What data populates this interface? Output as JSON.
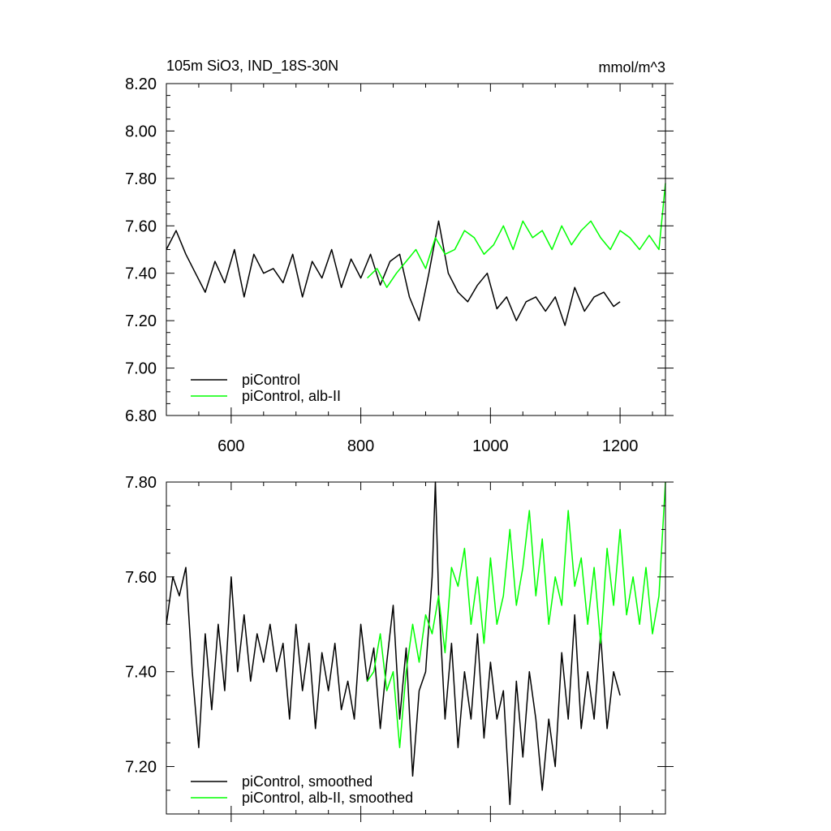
{
  "chart_data": [
    {
      "type": "line",
      "title": "105m SiO3, IND_18S-30N",
      "units_label": "mmol/m^3",
      "xlim": [
        500,
        1270
      ],
      "ylim": [
        6.8,
        8.2
      ],
      "x_ticks": [
        600,
        800,
        1000,
        1200
      ],
      "x_tick_labels": [
        "600",
        "800",
        "1000",
        "1200"
      ],
      "y_ticks": [
        6.8,
        7.0,
        7.2,
        7.4,
        7.6,
        7.8,
        8.0,
        8.2
      ],
      "y_tick_labels": [
        "6.80",
        "7.00",
        "7.20",
        "7.40",
        "7.60",
        "7.80",
        "8.00",
        "8.20"
      ],
      "grid": false,
      "legend_position": "bottom-left",
      "series": [
        {
          "name": "piControl",
          "color": "#000000",
          "x": [
            500,
            515,
            530,
            545,
            560,
            575,
            590,
            605,
            620,
            635,
            650,
            665,
            680,
            695,
            710,
            725,
            740,
            755,
            770,
            785,
            800,
            815,
            830,
            845,
            860,
            875,
            890,
            905,
            920,
            935,
            950,
            965,
            980,
            995,
            1010,
            1025,
            1040,
            1055,
            1070,
            1085,
            1100,
            1115,
            1130,
            1145,
            1160,
            1175,
            1190,
            1200
          ],
          "y": [
            7.5,
            7.58,
            7.48,
            7.4,
            7.32,
            7.45,
            7.36,
            7.5,
            7.3,
            7.48,
            7.4,
            7.42,
            7.36,
            7.48,
            7.3,
            7.45,
            7.38,
            7.5,
            7.34,
            7.46,
            7.38,
            7.48,
            7.35,
            7.45,
            7.48,
            7.3,
            7.2,
            7.4,
            7.62,
            7.4,
            7.32,
            7.28,
            7.35,
            7.4,
            7.25,
            7.3,
            7.2,
            7.28,
            7.3,
            7.24,
            7.3,
            7.18,
            7.34,
            7.24,
            7.3,
            7.32,
            7.26,
            7.28
          ]
        },
        {
          "name": "piControl, alb-II",
          "color": "#00ff00",
          "x": [
            810,
            825,
            840,
            855,
            870,
            885,
            900,
            915,
            930,
            945,
            960,
            975,
            990,
            1005,
            1020,
            1035,
            1050,
            1065,
            1080,
            1095,
            1110,
            1125,
            1140,
            1155,
            1170,
            1185,
            1200,
            1215,
            1230,
            1245,
            1260,
            1270
          ],
          "y": [
            7.38,
            7.42,
            7.34,
            7.4,
            7.45,
            7.5,
            7.42,
            7.55,
            7.48,
            7.5,
            7.58,
            7.55,
            7.48,
            7.52,
            7.6,
            7.5,
            7.62,
            7.55,
            7.58,
            7.5,
            7.6,
            7.52,
            7.58,
            7.62,
            7.55,
            7.5,
            7.58,
            7.55,
            7.5,
            7.56,
            7.5,
            7.78
          ]
        }
      ]
    },
    {
      "type": "line",
      "title": "",
      "xlim": [
        500,
        1270
      ],
      "ylim": [
        7.1,
        7.8
      ],
      "x_ticks": [
        600,
        800,
        1000,
        1200
      ],
      "x_tick_labels": [
        "",
        "",
        "",
        ""
      ],
      "y_ticks": [
        7.2,
        7.4,
        7.6,
        7.8
      ],
      "y_tick_labels": [
        "7.20",
        "7.40",
        "7.60",
        "7.80"
      ],
      "grid": false,
      "legend_position": "bottom-left",
      "series": [
        {
          "name": "piControl, smoothed",
          "color": "#000000",
          "x": [
            500,
            510,
            520,
            530,
            540,
            550,
            560,
            570,
            580,
            590,
            600,
            610,
            620,
            630,
            640,
            650,
            660,
            670,
            680,
            690,
            700,
            710,
            720,
            730,
            740,
            750,
            760,
            770,
            780,
            790,
            800,
            810,
            820,
            830,
            840,
            850,
            860,
            870,
            880,
            890,
            900,
            910,
            915,
            920,
            930,
            940,
            950,
            960,
            970,
            980,
            990,
            1000,
            1010,
            1020,
            1030,
            1040,
            1050,
            1060,
            1070,
            1080,
            1090,
            1100,
            1110,
            1120,
            1130,
            1140,
            1150,
            1160,
            1170,
            1180,
            1190,
            1200
          ],
          "y": [
            7.5,
            7.6,
            7.56,
            7.62,
            7.4,
            7.24,
            7.48,
            7.32,
            7.5,
            7.36,
            7.6,
            7.4,
            7.52,
            7.38,
            7.48,
            7.42,
            7.5,
            7.4,
            7.46,
            7.3,
            7.5,
            7.36,
            7.46,
            7.28,
            7.44,
            7.36,
            7.46,
            7.32,
            7.38,
            7.3,
            7.5,
            7.38,
            7.45,
            7.28,
            7.42,
            7.54,
            7.3,
            7.45,
            7.18,
            7.36,
            7.4,
            7.6,
            7.8,
            7.56,
            7.3,
            7.46,
            7.24,
            7.4,
            7.3,
            7.48,
            7.26,
            7.42,
            7.3,
            7.36,
            7.12,
            7.38,
            7.22,
            7.4,
            7.3,
            7.15,
            7.3,
            7.2,
            7.44,
            7.3,
            7.52,
            7.28,
            7.4,
            7.3,
            7.48,
            7.28,
            7.4,
            7.35
          ]
        },
        {
          "name": "piControl, alb-II, smoothed",
          "color": "#00ff00",
          "x": [
            810,
            820,
            830,
            840,
            850,
            860,
            870,
            880,
            890,
            900,
            910,
            920,
            930,
            940,
            950,
            960,
            970,
            980,
            990,
            1000,
            1010,
            1020,
            1030,
            1040,
            1050,
            1060,
            1070,
            1080,
            1090,
            1100,
            1110,
            1120,
            1130,
            1140,
            1150,
            1160,
            1170,
            1180,
            1190,
            1200,
            1210,
            1220,
            1230,
            1240,
            1250,
            1260,
            1270
          ],
          "y": [
            7.38,
            7.4,
            7.48,
            7.36,
            7.4,
            7.24,
            7.4,
            7.5,
            7.42,
            7.52,
            7.48,
            7.56,
            7.44,
            7.62,
            7.58,
            7.66,
            7.5,
            7.6,
            7.46,
            7.64,
            7.5,
            7.56,
            7.7,
            7.54,
            7.62,
            7.74,
            7.56,
            7.68,
            7.5,
            7.6,
            7.54,
            7.74,
            7.58,
            7.64,
            7.5,
            7.62,
            7.46,
            7.66,
            7.54,
            7.7,
            7.52,
            7.6,
            7.5,
            7.62,
            7.48,
            7.56,
            7.8
          ]
        }
      ]
    }
  ]
}
